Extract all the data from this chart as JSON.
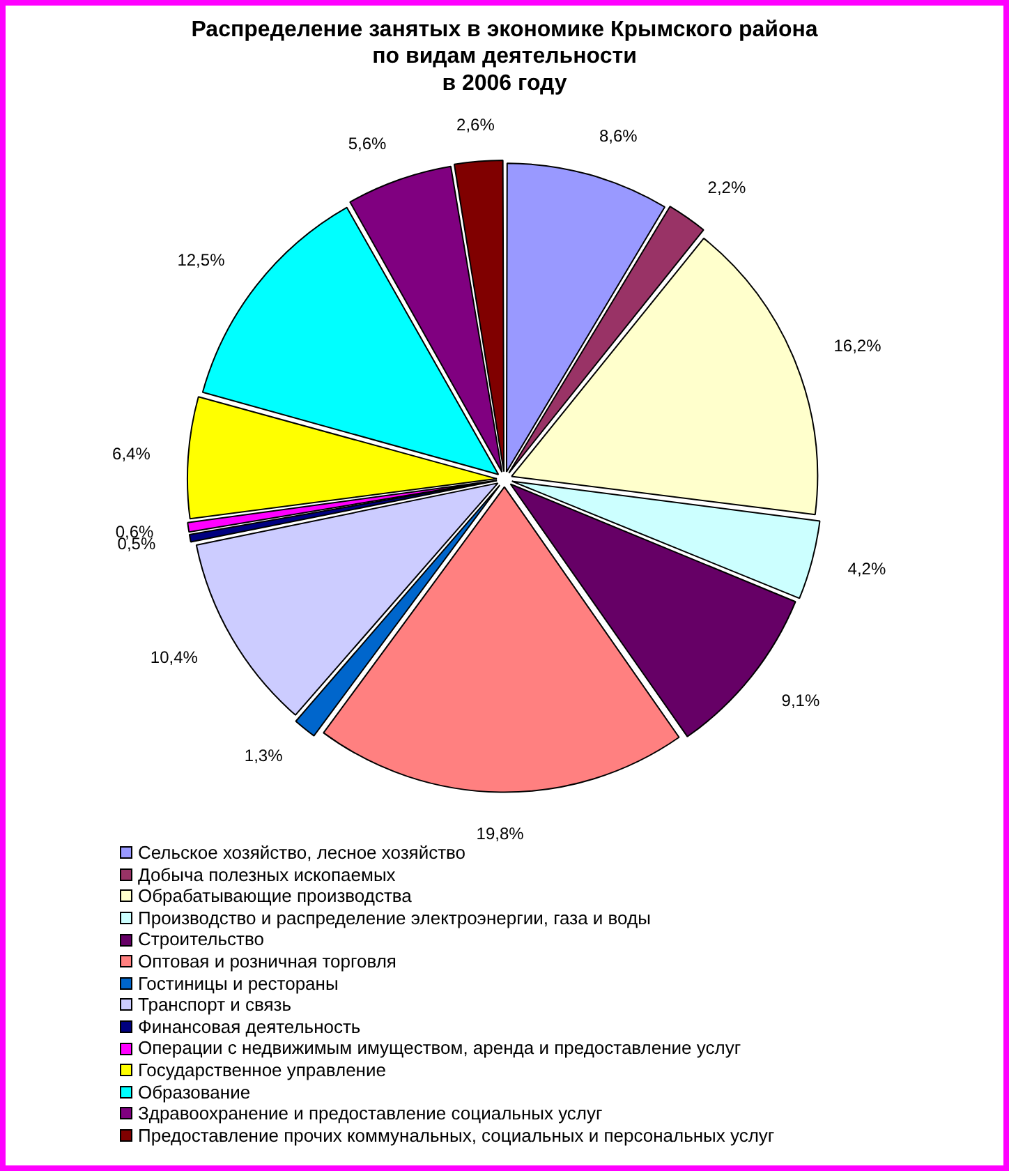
{
  "chart_data": {
    "type": "pie",
    "title": "Распределение занятых в экономике Крымского района\nпо видам деятельности\nв 2006 году",
    "categories": [
      "Сельское хозяйство, лесное хозяйство",
      "Добыча полезных ископаемых",
      "Обрабатывающие производства",
      "Производство и распределение электроэнергии, газа и воды",
      "Строительство",
      "Оптовая и розничная торговля",
      "Гостиницы и рестораны",
      "Транспорт и связь",
      "Финансовая деятельность",
      "Операции с недвижимым имуществом, аренда и предоставление услуг",
      "Государственное управление",
      "Образование",
      "Здравоохранение и предоставление социальных услуг",
      "Предоставление прочих коммунальных, социальных и персональных услуг"
    ],
    "values": [
      8.6,
      2.2,
      16.2,
      4.2,
      9.1,
      19.8,
      1.3,
      10.4,
      0.5,
      0.6,
      6.4,
      12.5,
      5.6,
      2.6
    ],
    "value_labels": [
      "8,6%",
      "2,2%",
      "16,2%",
      "4,2%",
      "9,1%",
      "19,8%",
      "1,3%",
      "10,4%",
      "0,5%",
      "0,6%",
      "6,4%",
      "12,5%",
      "5,6%",
      "2,6%"
    ],
    "colors": [
      "#9999ff",
      "#993366",
      "#ffffcc",
      "#ccffff",
      "#660066",
      "#ff8080",
      "#0066cc",
      "#ccccff",
      "#000080",
      "#ff00ff",
      "#ffff00",
      "#00ffff",
      "#800080",
      "#800000"
    ],
    "legend": "bottom"
  }
}
